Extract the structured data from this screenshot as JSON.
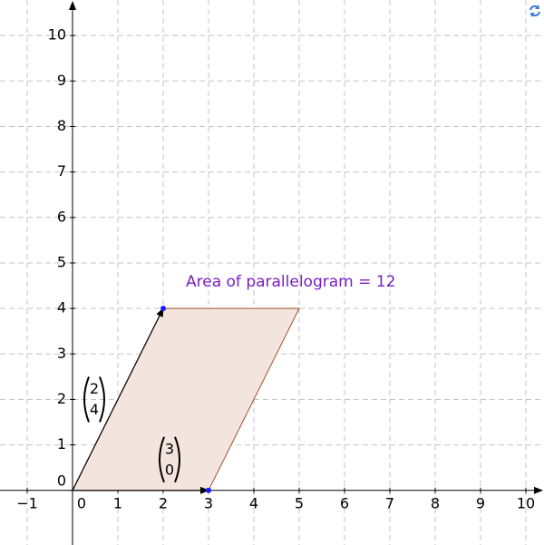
{
  "chart_data": {
    "type": "parallelogram",
    "xlim": [
      -1.6,
      10.4
    ],
    "ylim": [
      -1.2,
      10.78
    ],
    "xticks": [
      {
        "value": -1,
        "label": "−1"
      },
      0,
      1,
      2,
      3,
      4,
      5,
      6,
      7,
      8,
      9,
      10
    ],
    "yticks": [
      0,
      1,
      2,
      3,
      4,
      5,
      6,
      7,
      8,
      9,
      10
    ],
    "grid": true,
    "vectors": [
      {
        "x": 3,
        "y": 0
      },
      {
        "x": 2,
        "y": 4
      }
    ],
    "fill_color": "#f3e4dd",
    "edge_color": "#a0522d",
    "point_color": "#1a1aff",
    "annotation": "Area of parallelogram = 12",
    "annotation_color": "#7a1fc0"
  }
}
